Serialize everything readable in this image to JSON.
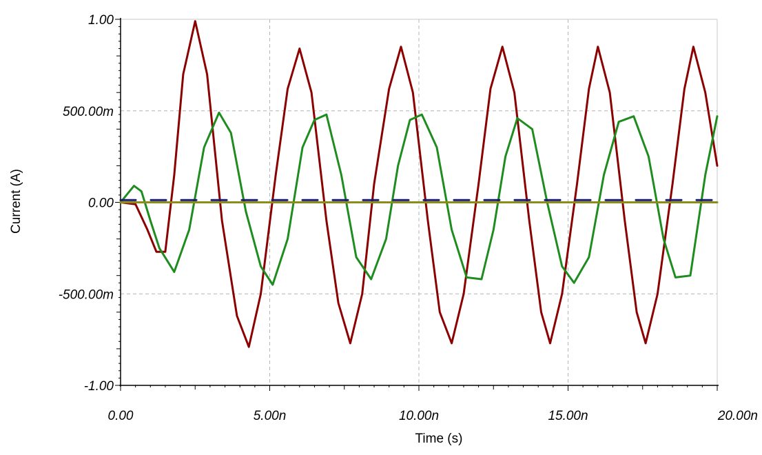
{
  "chart_data": {
    "type": "line",
    "title": "",
    "xlabel": "Time (s)",
    "ylabel": "Current (A)",
    "xlim": [
      0,
      20
    ],
    "ylim": [
      -1.0,
      1.0
    ],
    "x_unit": "ns",
    "grid": true,
    "legend": "none",
    "x_ticks": [
      {
        "value": 0,
        "label": "0.00"
      },
      {
        "value": 5,
        "label": "5.00n"
      },
      {
        "value": 10,
        "label": "10.00n"
      },
      {
        "value": 15,
        "label": "15.00n"
      },
      {
        "value": 20,
        "label": "20.00n"
      }
    ],
    "y_ticks": [
      {
        "value": 1.0,
        "label": "1.00"
      },
      {
        "value": 0.5,
        "label": "500.00m"
      },
      {
        "value": 0.0,
        "label": "0.00"
      },
      {
        "value": -0.5,
        "label": "-500.00m"
      },
      {
        "value": -1.0,
        "label": "-1.00"
      }
    ],
    "series": [
      {
        "color": "#8b0000",
        "x": [
          0,
          0.5,
          0.9,
          1.2,
          1.5,
          1.8,
          2.1,
          2.5,
          2.9,
          3.4,
          3.9,
          4.3,
          4.7,
          5.2,
          5.6,
          6.0,
          6.4,
          6.9,
          7.3,
          7.7,
          8.1,
          8.5,
          9.0,
          9.4,
          9.8,
          10.3,
          10.7,
          11.1,
          11.5,
          12.0,
          12.4,
          12.8,
          13.2,
          13.7,
          14.1,
          14.4,
          14.8,
          15.3,
          15.7,
          16.0,
          16.4,
          16.9,
          17.3,
          17.6,
          18.0,
          18.5,
          18.9,
          19.2,
          19.6,
          20.0
        ],
        "y": [
          0,
          -0.01,
          -0.15,
          -0.27,
          -0.27,
          0.15,
          0.7,
          0.99,
          0.7,
          -0.1,
          -0.62,
          -0.79,
          -0.5,
          0.15,
          0.62,
          0.84,
          0.6,
          -0.1,
          -0.55,
          -0.77,
          -0.5,
          0.1,
          0.62,
          0.85,
          0.6,
          -0.1,
          -0.6,
          -0.77,
          -0.5,
          0.1,
          0.62,
          0.85,
          0.6,
          -0.1,
          -0.6,
          -0.77,
          -0.5,
          0.1,
          0.62,
          0.85,
          0.6,
          -0.1,
          -0.6,
          -0.77,
          -0.5,
          0.1,
          0.62,
          0.85,
          0.6,
          0.2
        ]
      },
      {
        "color": "#1e8c1e",
        "x": [
          0,
          0.25,
          0.45,
          0.7,
          1.0,
          1.3,
          1.8,
          2.3,
          2.8,
          3.3,
          3.7,
          4.2,
          4.7,
          5.1,
          5.6,
          6.1,
          6.5,
          6.9,
          7.4,
          7.9,
          8.4,
          8.9,
          9.3,
          9.7,
          10.1,
          10.6,
          11.1,
          11.6,
          12.1,
          12.5,
          12.9,
          13.3,
          13.8,
          14.3,
          14.8,
          15.2,
          15.7,
          16.2,
          16.7,
          17.2,
          17.7,
          18.2,
          18.6,
          19.1,
          19.6,
          20.0
        ],
        "y": [
          0,
          0.05,
          0.09,
          0.06,
          -0.1,
          -0.25,
          -0.38,
          -0.15,
          0.3,
          0.49,
          0.38,
          -0.05,
          -0.35,
          -0.45,
          -0.2,
          0.3,
          0.45,
          0.48,
          0.15,
          -0.3,
          -0.42,
          -0.2,
          0.2,
          0.45,
          0.48,
          0.3,
          -0.15,
          -0.41,
          -0.42,
          -0.15,
          0.25,
          0.46,
          0.4,
          0.0,
          -0.35,
          -0.44,
          -0.3,
          0.15,
          0.44,
          0.47,
          0.25,
          -0.2,
          -0.41,
          -0.4,
          0.15,
          0.47
        ]
      },
      {
        "color": "#1a1a6e",
        "x": [
          0,
          20
        ],
        "y": [
          0.012,
          0.012
        ]
      },
      {
        "color": "#8c8c1a",
        "x": [
          0,
          20
        ],
        "y": [
          0.0,
          0.0
        ]
      }
    ]
  }
}
